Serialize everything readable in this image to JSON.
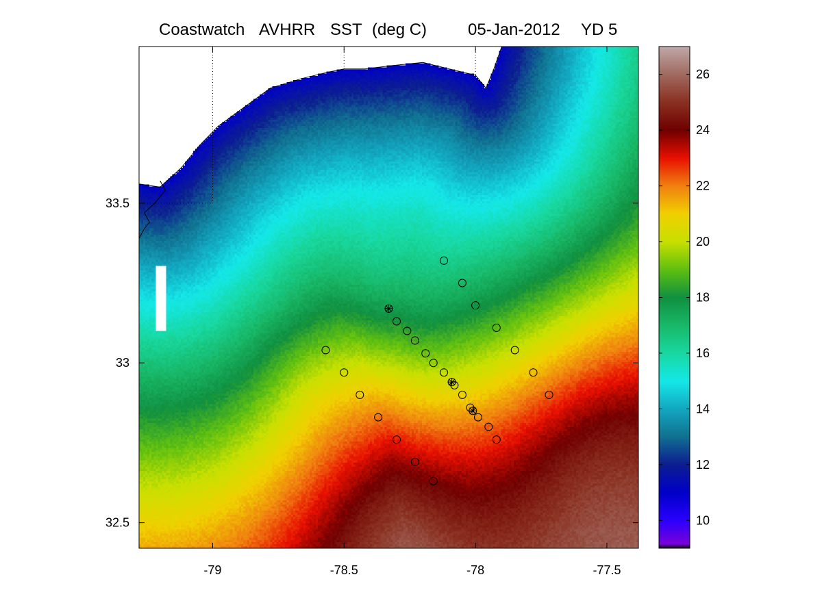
{
  "title": {
    "source": "Coastwatch",
    "sensor": "AVHRR",
    "product": "SST",
    "units": "(deg C)",
    "date": "05-Jan-2012",
    "yearday": "YD 5"
  },
  "chart_data": {
    "type": "heatmap",
    "variable": "sea surface temperature",
    "units": "deg C",
    "xlim": [
      -79.28,
      -77.38
    ],
    "ylim": [
      32.42,
      33.99
    ],
    "x_ticks": [
      -79,
      -78.5,
      -78,
      -77.5
    ],
    "x_tick_labels": [
      "-79",
      "-78.5",
      "-78",
      "-77.5"
    ],
    "y_ticks": [
      32.5,
      33,
      33.5
    ],
    "y_tick_labels": [
      "32.5",
      "33",
      "33.5"
    ],
    "grid": "dotted, partial",
    "colorbar": {
      "min": 9,
      "max": 27,
      "ticks": [
        10,
        12,
        14,
        16,
        18,
        20,
        22,
        24,
        26
      ],
      "tick_labels": [
        "10",
        "12",
        "14",
        "16",
        "18",
        "20",
        "22",
        "24",
        "26"
      ],
      "stops": [
        {
          "value": 9.0,
          "color": "#000000"
        },
        {
          "value": 9.15,
          "color": "#7a00d8"
        },
        {
          "value": 10,
          "color": "#2a00ff"
        },
        {
          "value": 11,
          "color": "#0000c8"
        },
        {
          "value": 12,
          "color": "#0c1e90"
        },
        {
          "value": 13,
          "color": "#107090"
        },
        {
          "value": 14,
          "color": "#12a8c0"
        },
        {
          "value": 15,
          "color": "#14e8e8"
        },
        {
          "value": 16,
          "color": "#18d8a0"
        },
        {
          "value": 17,
          "color": "#18b868"
        },
        {
          "value": 18,
          "color": "#109040"
        },
        {
          "value": 19,
          "color": "#60c010"
        },
        {
          "value": 20,
          "color": "#c8e000"
        },
        {
          "value": 21,
          "color": "#f0d000"
        },
        {
          "value": 22,
          "color": "#f08010"
        },
        {
          "value": 23,
          "color": "#e81000"
        },
        {
          "value": 24,
          "color": "#700000"
        },
        {
          "value": 25,
          "color": "#8a3020"
        },
        {
          "value": 26,
          "color": "#a06a60"
        },
        {
          "value": 27,
          "color": "#c0a8a8"
        }
      ]
    },
    "field": {
      "sst_at_coast": 11.0,
      "sst_offshore": 26.5,
      "distance_scale_deg": 1.8,
      "lobes": [
        {
          "lon": -78.3,
          "lat": 33.2,
          "radius_deg": 0.2,
          "dT": -1.0
        },
        {
          "lon": -78.6,
          "lat": 32.95,
          "radius_deg": 0.15,
          "dT": 0.6
        },
        {
          "lon": -78.55,
          "lat": 32.6,
          "radius_deg": 0.3,
          "dT": 0.8
        },
        {
          "lon": -78.3,
          "lat": 32.5,
          "radius_deg": 0.25,
          "dT": 1.2
        },
        {
          "lon": -77.6,
          "lat": 32.7,
          "radius_deg": 0.3,
          "dT": 2.0
        },
        {
          "lon": -77.4,
          "lat": 33.0,
          "radius_deg": 0.3,
          "dT": 1.0
        }
      ]
    },
    "coastline": [
      [
        -79.28,
        33.56
      ],
      [
        -79.2,
        33.55
      ],
      [
        -79.12,
        33.61
      ],
      [
        -79.05,
        33.68
      ],
      [
        -78.98,
        33.74
      ],
      [
        -78.88,
        33.8
      ],
      [
        -78.78,
        33.86
      ],
      [
        -78.66,
        33.89
      ],
      [
        -78.56,
        33.91
      ],
      [
        -78.5,
        33.92
      ],
      [
        -78.42,
        33.92
      ],
      [
        -78.32,
        33.93
      ],
      [
        -78.2,
        33.94
      ],
      [
        -78.1,
        33.92
      ],
      [
        -78.0,
        33.9
      ],
      [
        -77.96,
        33.86
      ],
      [
        -77.93,
        33.92
      ],
      [
        -77.9,
        33.99
      ]
    ],
    "inner_shore": [
      [
        -79.28,
        33.39
      ],
      [
        -79.26,
        33.42
      ],
      [
        -79.24,
        33.44
      ],
      [
        -79.26,
        33.47
      ],
      [
        -79.22,
        33.5
      ],
      [
        -79.18,
        33.54
      ],
      [
        -79.2,
        33.57
      ]
    ],
    "mask": {
      "notch_lat": 33.05,
      "notch_lon_min": -79.22,
      "notch_lon_max": -79.18,
      "notch_lat_min": 33.1,
      "notch_lat_max": 33.3
    },
    "stations": [
      {
        "lon": -78.12,
        "lat": 33.32
      },
      {
        "lon": -78.05,
        "lat": 33.25
      },
      {
        "lon": -78.0,
        "lat": 33.18
      },
      {
        "lon": -77.92,
        "lat": 33.11
      },
      {
        "lon": -77.85,
        "lat": 33.04
      },
      {
        "lon": -77.78,
        "lat": 32.97
      },
      {
        "lon": -77.72,
        "lat": 32.9
      },
      {
        "lon": -78.33,
        "lat": 33.17,
        "mooring": true
      },
      {
        "lon": -78.3,
        "lat": 33.13
      },
      {
        "lon": -78.26,
        "lat": 33.1
      },
      {
        "lon": -78.23,
        "lat": 33.07
      },
      {
        "lon": -78.19,
        "lat": 33.03
      },
      {
        "lon": -78.16,
        "lat": 33.0
      },
      {
        "lon": -78.12,
        "lat": 32.97
      },
      {
        "lon": -78.09,
        "lat": 32.94,
        "mooring": true
      },
      {
        "lon": -78.08,
        "lat": 32.93
      },
      {
        "lon": -78.05,
        "lat": 32.9
      },
      {
        "lon": -78.02,
        "lat": 32.86
      },
      {
        "lon": -78.01,
        "lat": 32.85,
        "mooring": true
      },
      {
        "lon": -77.99,
        "lat": 32.83
      },
      {
        "lon": -77.95,
        "lat": 32.8
      },
      {
        "lon": -77.92,
        "lat": 32.76
      },
      {
        "lon": -78.57,
        "lat": 33.04
      },
      {
        "lon": -78.5,
        "lat": 32.97
      },
      {
        "lon": -78.44,
        "lat": 32.9
      },
      {
        "lon": -78.37,
        "lat": 32.83
      },
      {
        "lon": -78.3,
        "lat": 32.76
      },
      {
        "lon": -78.23,
        "lat": 32.69
      },
      {
        "lon": -78.16,
        "lat": 32.63
      }
    ]
  }
}
